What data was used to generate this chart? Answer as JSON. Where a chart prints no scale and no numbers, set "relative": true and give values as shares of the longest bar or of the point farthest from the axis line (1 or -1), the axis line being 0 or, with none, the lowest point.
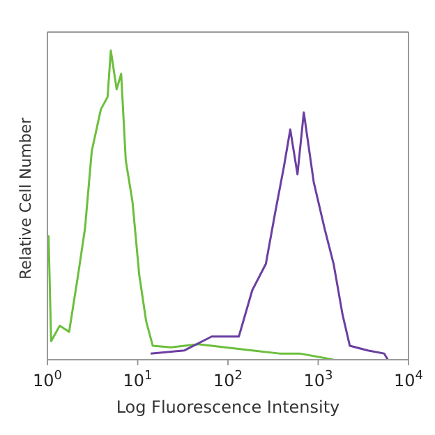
{
  "chart_data": {
    "type": "line",
    "relative": true,
    "xlabel": "Log Fluorescence Intensity",
    "ylabel": "Relative Cell Number",
    "log": "x",
    "xlim": [
      1,
      10000
    ],
    "xticks": [
      {
        "value": 1,
        "label": "10$^{0}$"
      },
      {
        "value": 10,
        "label": "10$^{1}$"
      },
      {
        "value": 100,
        "label": "10$^{2}$"
      },
      {
        "value": 1000,
        "label": "10$^{3}$"
      },
      {
        "value": 10000,
        "label": "10$^{4}$"
      }
    ],
    "legend": false,
    "marker": "none",
    "line_style": "solid",
    "series": [
      {
        "color": "#6cbf3c",
        "x": [
          1,
          1.03,
          1.1,
          1.37,
          1.74,
          2.19,
          2.61,
          3.1,
          3.91,
          4.64,
          5.04,
          5.85,
          6.56,
          7.38,
          8.77,
          10.4,
          12.4,
          14.7,
          23.4,
          46.7,
          93,
          186,
          372,
          627,
          1480
        ],
        "values": [
          0.4,
          0.4,
          0.06,
          0.11,
          0.09,
          0.275,
          0.425,
          0.675,
          0.81,
          0.85,
          1,
          0.875,
          0.925,
          0.645,
          0.51,
          0.275,
          0.125,
          0.045,
          0.04,
          0.05,
          0.04,
          0.03,
          0.02,
          0.02,
          0
        ]
      },
      {
        "color": "#6b3fa2",
        "x": [
          13.9,
          33,
          66,
          132,
          186,
          263,
          333,
          417,
          490,
          589,
          692,
          891,
          1175,
          1480,
          1862,
          2239,
          3548,
          5370,
          5900
        ],
        "values": [
          0.02,
          0.03,
          0.075,
          0.075,
          0.225,
          0.31,
          0.475,
          0.625,
          0.745,
          0.6,
          0.8,
          0.575,
          0.425,
          0.31,
          0.145,
          0.045,
          0.03,
          0.02,
          0
        ]
      }
    ]
  }
}
